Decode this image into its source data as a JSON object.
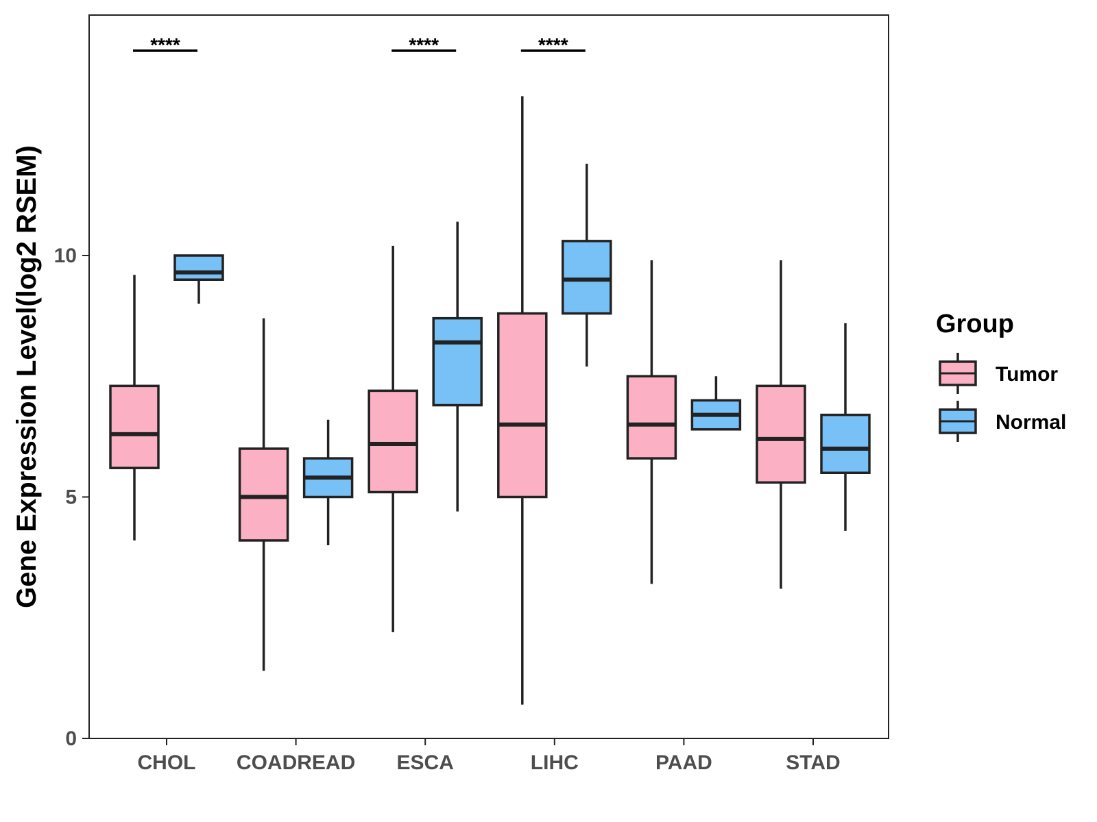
{
  "chart_data": {
    "type": "boxplot",
    "title": "",
    "xlabel": "",
    "ylabel": "Gene Expression Level(log2 RSEM)",
    "ylim": [
      0,
      15
    ],
    "yticks": [
      0,
      5,
      10
    ],
    "grid": false,
    "categories": [
      "CHOL",
      "COADREAD",
      "ESCA",
      "LIHC",
      "PAAD",
      "STAD"
    ],
    "legend": {
      "title": "Group",
      "position": "right",
      "entries": [
        {
          "name": "Tumor",
          "color": "#FBB1C3"
        },
        {
          "name": "Normal",
          "color": "#78C1F7"
        }
      ]
    },
    "series": [
      {
        "name": "Tumor",
        "color": "#FBB1C3",
        "boxes": [
          {
            "min": 4.1,
            "q1": 5.6,
            "median": 6.3,
            "q3": 7.3,
            "max": 9.6
          },
          {
            "min": 1.4,
            "q1": 4.1,
            "median": 5.0,
            "q3": 6.0,
            "max": 8.7
          },
          {
            "min": 2.2,
            "q1": 5.1,
            "median": 6.1,
            "q3": 7.2,
            "max": 10.2
          },
          {
            "min": 0.7,
            "q1": 5.0,
            "median": 6.5,
            "q3": 8.8,
            "max": 13.3
          },
          {
            "min": 3.2,
            "q1": 5.8,
            "median": 6.5,
            "q3": 7.5,
            "max": 9.9
          },
          {
            "min": 3.1,
            "q1": 5.3,
            "median": 6.2,
            "q3": 7.3,
            "max": 9.9
          }
        ]
      },
      {
        "name": "Normal",
        "color": "#78C1F7",
        "boxes": [
          {
            "min": 9.0,
            "q1": 9.5,
            "median": 9.65,
            "q3": 10.0,
            "max": 10.0
          },
          {
            "min": 4.0,
            "q1": 5.0,
            "median": 5.4,
            "q3": 5.8,
            "max": 6.6
          },
          {
            "min": 4.7,
            "q1": 6.9,
            "median": 8.2,
            "q3": 8.7,
            "max": 10.7
          },
          {
            "min": 7.7,
            "q1": 8.8,
            "median": 9.5,
            "q3": 10.3,
            "max": 11.9
          },
          {
            "min": 6.4,
            "q1": 6.4,
            "median": 6.7,
            "q3": 7.0,
            "max": 7.5
          },
          {
            "min": 4.3,
            "q1": 5.5,
            "median": 6.0,
            "q3": 6.7,
            "max": 8.6
          }
        ]
      }
    ],
    "annotations": [
      {
        "category": "CHOL",
        "text": "****"
      },
      {
        "category": "ESCA",
        "text": "****"
      },
      {
        "category": "LIHC",
        "text": "****"
      }
    ]
  }
}
